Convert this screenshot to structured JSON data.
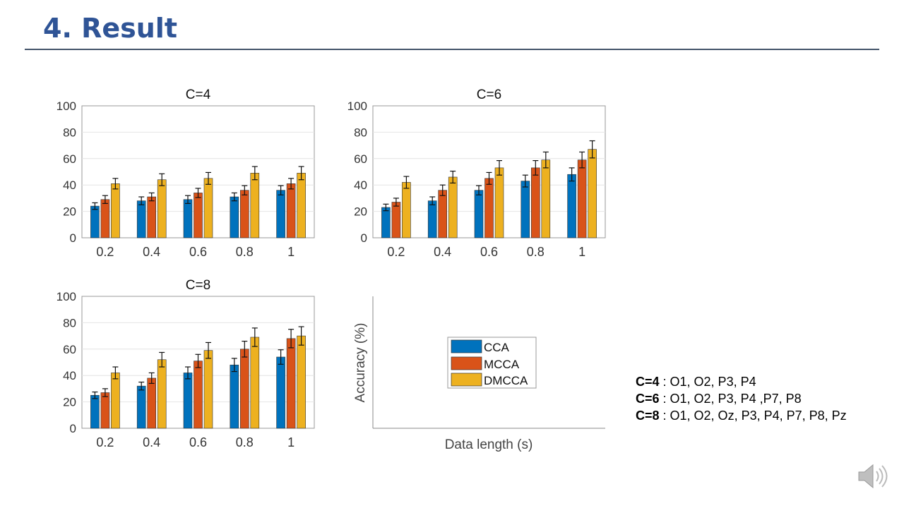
{
  "slide": {
    "title": "4. Result"
  },
  "colors": {
    "CCA": "#0072BD",
    "MCCA": "#D95319",
    "DMCCA": "#EDB120",
    "title": "#2f5496"
  },
  "chart_data": [
    {
      "type": "bar",
      "title": "C=4",
      "categories": [
        "0.2",
        "0.4",
        "0.6",
        "0.8",
        "1"
      ],
      "ylim": [
        0,
        100
      ],
      "yticks": [
        "0",
        "20",
        "40",
        "60",
        "80",
        "100"
      ],
      "grid": true,
      "series": [
        {
          "name": "CCA",
          "values": [
            24,
            28,
            29,
            31,
            36
          ],
          "errors": [
            2.5,
            3,
            3,
            3,
            3.5
          ]
        },
        {
          "name": "MCCA",
          "values": [
            29,
            31,
            34,
            36,
            41
          ],
          "errors": [
            3,
            3,
            3.5,
            3.5,
            4
          ]
        },
        {
          "name": "DMCCA",
          "values": [
            41,
            44,
            45,
            49,
            49
          ],
          "errors": [
            4,
            4.5,
            4.5,
            5,
            5
          ]
        }
      ]
    },
    {
      "type": "bar",
      "title": "C=6",
      "categories": [
        "0.2",
        "0.4",
        "0.6",
        "0.8",
        "1"
      ],
      "ylim": [
        0,
        100
      ],
      "yticks": [
        "0",
        "20",
        "40",
        "60",
        "80",
        "100"
      ],
      "grid": true,
      "series": [
        {
          "name": "CCA",
          "values": [
            23,
            28,
            36,
            43,
            48
          ],
          "errors": [
            2.5,
            3,
            3.5,
            4.5,
            5
          ]
        },
        {
          "name": "MCCA",
          "values": [
            27,
            36,
            45,
            53,
            59
          ],
          "errors": [
            3,
            4,
            4.5,
            5.5,
            6
          ]
        },
        {
          "name": "DMCCA",
          "values": [
            42,
            46,
            53,
            59,
            67
          ],
          "errors": [
            4.5,
            4.5,
            5.5,
            6,
            6.5
          ]
        }
      ]
    },
    {
      "type": "bar",
      "title": "C=8",
      "categories": [
        "0.2",
        "0.4",
        "0.6",
        "0.8",
        "1"
      ],
      "ylim": [
        0,
        100
      ],
      "yticks": [
        "0",
        "20",
        "40",
        "60",
        "80",
        "100"
      ],
      "grid": true,
      "series": [
        {
          "name": "CCA",
          "values": [
            25,
            32,
            42,
            48,
            54
          ],
          "errors": [
            2.5,
            3,
            4.5,
            5,
            5.5
          ]
        },
        {
          "name": "MCCA",
          "values": [
            27,
            38,
            51,
            60,
            68
          ],
          "errors": [
            3,
            4,
            5,
            6,
            7
          ]
        },
        {
          "name": "DMCCA",
          "values": [
            42,
            52,
            59,
            69,
            70
          ],
          "errors": [
            4.5,
            5.5,
            6,
            7,
            7
          ]
        }
      ]
    }
  ],
  "legend_panel": {
    "ylabel": "Accuracy (%)",
    "xlabel": "Data length (s)",
    "entries": [
      "CCA",
      "MCCA",
      "DMCCA"
    ]
  },
  "channels": [
    {
      "label": "C=4",
      "text": " : O1, O2, P3, P4"
    },
    {
      "label": "C=6",
      "text": " : O1, O2, P3, P4 ,P7, P8"
    },
    {
      "label": "C=8",
      "text": " : O1, O2, Oz, P3, P4, P7, P8, Pz"
    }
  ],
  "icons": {
    "speaker": "speaker-icon"
  }
}
